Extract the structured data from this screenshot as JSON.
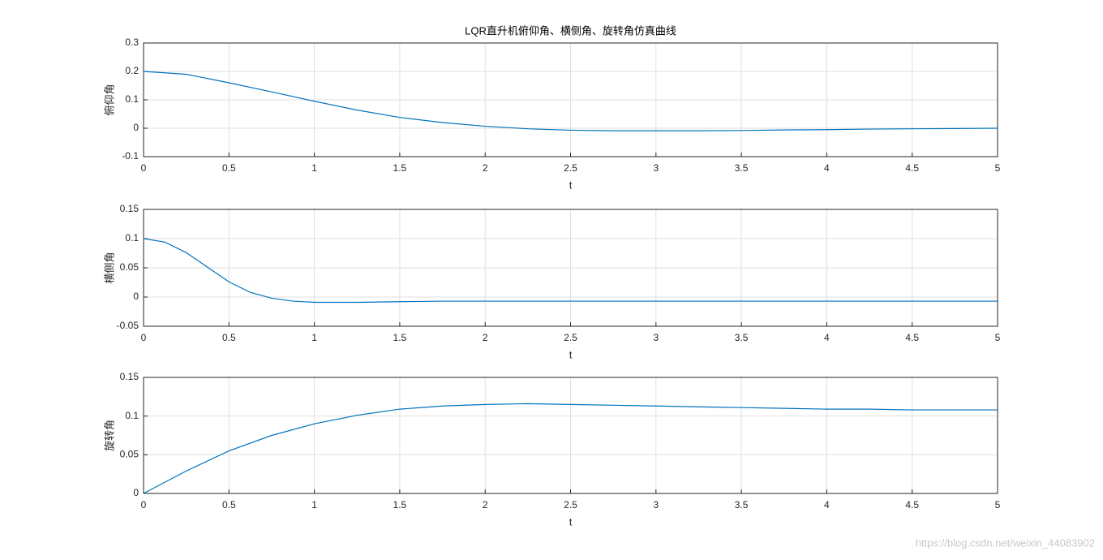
{
  "chart_data": [
    {
      "type": "line",
      "title": "LQR直升机俯仰角、横侧角、旋转角仿真曲线",
      "xlabel": "t",
      "ylabel": "俯仰角",
      "x": [
        0,
        0.25,
        0.5,
        0.75,
        1,
        1.25,
        1.5,
        1.75,
        2,
        2.25,
        2.5,
        2.75,
        3,
        3.25,
        3.5,
        3.75,
        4,
        4.25,
        4.5,
        4.75,
        5
      ],
      "values": [
        0.2,
        0.19,
        0.16,
        0.128,
        0.095,
        0.064,
        0.038,
        0.02,
        0.007,
        -0.002,
        -0.007,
        -0.009,
        -0.009,
        -0.009,
        -0.008,
        -0.006,
        -0.005,
        -0.003,
        -0.002,
        -0.001,
        0
      ],
      "color": "#0072bd",
      "xlim": [
        0,
        5
      ],
      "ylim": [
        -0.1,
        0.3
      ],
      "xticks": [
        0,
        0.5,
        1,
        1.5,
        2,
        2.5,
        3,
        3.5,
        4,
        4.5,
        5
      ],
      "yticks": [
        -0.1,
        0,
        0.1,
        0.2,
        0.3
      ],
      "grid": true
    },
    {
      "type": "line",
      "xlabel": "t",
      "ylabel": "横侧角",
      "x": [
        0,
        0.125,
        0.25,
        0.375,
        0.5,
        0.625,
        0.75,
        0.875,
        1,
        1.25,
        1.5,
        1.75,
        2,
        2.25,
        2.5,
        2.75,
        3,
        3.25,
        3.5,
        3.75,
        4,
        4.25,
        4.5,
        4.75,
        5
      ],
      "values": [
        0.1,
        0.094,
        0.076,
        0.051,
        0.026,
        0.008,
        -0.002,
        -0.007,
        -0.009,
        -0.009,
        -0.008,
        -0.007,
        -0.007,
        -0.007,
        -0.007,
        -0.007,
        -0.007,
        -0.007,
        -0.007,
        -0.007,
        -0.007,
        -0.007,
        -0.007,
        -0.007,
        -0.007
      ],
      "color": "#0072bd",
      "xlim": [
        0,
        5
      ],
      "ylim": [
        -0.05,
        0.15
      ],
      "xticks": [
        0,
        0.5,
        1,
        1.5,
        2,
        2.5,
        3,
        3.5,
        4,
        4.5,
        5
      ],
      "yticks": [
        -0.05,
        0,
        0.05,
        0.1,
        0.15
      ],
      "grid": true
    },
    {
      "type": "line",
      "xlabel": "t",
      "ylabel": "旋转角",
      "x": [
        0,
        0.25,
        0.5,
        0.75,
        1,
        1.25,
        1.5,
        1.75,
        2,
        2.25,
        2.5,
        2.75,
        3,
        3.25,
        3.5,
        3.75,
        4,
        4.25,
        4.5,
        4.75,
        5
      ],
      "values": [
        0,
        0.029,
        0.055,
        0.075,
        0.09,
        0.101,
        0.109,
        0.113,
        0.115,
        0.116,
        0.115,
        0.114,
        0.113,
        0.112,
        0.111,
        0.11,
        0.109,
        0.109,
        0.108,
        0.108,
        0.108
      ],
      "color": "#0072bd",
      "xlim": [
        0,
        5
      ],
      "ylim": [
        0,
        0.15
      ],
      "xticks": [
        0,
        0.5,
        1,
        1.5,
        2,
        2.5,
        3,
        3.5,
        4,
        4.5,
        5
      ],
      "yticks": [
        0,
        0.05,
        0.1,
        0.15
      ],
      "grid": true
    }
  ],
  "watermark": "https://blog.csdn.net/weixin_44083902"
}
